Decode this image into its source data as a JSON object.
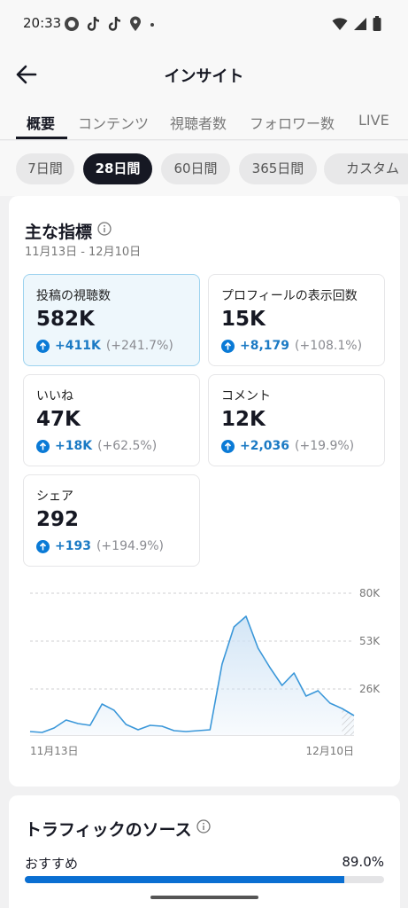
{
  "status_bar": {
    "time": "20:33"
  },
  "header": {
    "title": "インサイト"
  },
  "tabs": [
    {
      "label": "概要",
      "active": true
    },
    {
      "label": "コンテンツ"
    },
    {
      "label": "視聴者数"
    },
    {
      "label": "フォロワー数"
    },
    {
      "label": "LIVE"
    }
  ],
  "periods": [
    {
      "label": "7日間"
    },
    {
      "label": "28日間",
      "active": true
    },
    {
      "label": "60日間"
    },
    {
      "label": "365日間"
    },
    {
      "label": "カスタム"
    }
  ],
  "key_metrics": {
    "title": "主な指標",
    "date_range": "11月13日 - 12月10日",
    "items": [
      {
        "label": "投稿の視聴数",
        "value": "582K",
        "delta": "+411K",
        "pct": "(+241.7%)",
        "selected": true
      },
      {
        "label": "プロフィールの表示回数",
        "value": "15K",
        "delta": "+8,179",
        "pct": "(+108.1%)"
      },
      {
        "label": "いいね",
        "value": "47K",
        "delta": "+18K",
        "pct": "(+62.5%)"
      },
      {
        "label": "コメント",
        "value": "12K",
        "delta": "+2,036",
        "pct": "(+19.9%)"
      },
      {
        "label": "シェア",
        "value": "292",
        "delta": "+193",
        "pct": "(+194.9%)"
      }
    ]
  },
  "chart_data": {
    "type": "area",
    "x_labels": [
      "11月13日",
      "12月10日"
    ],
    "y_ticks": [
      "80K",
      "53K",
      "26K"
    ],
    "y_tick_values": [
      80000,
      53000,
      26000
    ],
    "ylim": [
      0,
      80000
    ],
    "grid": true,
    "series": [
      {
        "values": [
          2000,
          1500,
          4000,
          8500,
          6500,
          5500,
          17500,
          14000,
          6000,
          3000,
          5500,
          5000,
          2500,
          2000,
          2500,
          3000,
          40000,
          61000,
          67000,
          49000,
          38000,
          28000,
          35000,
          22000,
          25000,
          18000,
          15000,
          11000
        ]
      }
    ],
    "colors": {
      "line": "#3a97d9",
      "fill": "#cfe3f5"
    }
  },
  "traffic": {
    "title": "トラフィックのソース",
    "rows": [
      {
        "label": "おすすめ",
        "value": "89.0%",
        "fraction": 0.89
      }
    ]
  }
}
